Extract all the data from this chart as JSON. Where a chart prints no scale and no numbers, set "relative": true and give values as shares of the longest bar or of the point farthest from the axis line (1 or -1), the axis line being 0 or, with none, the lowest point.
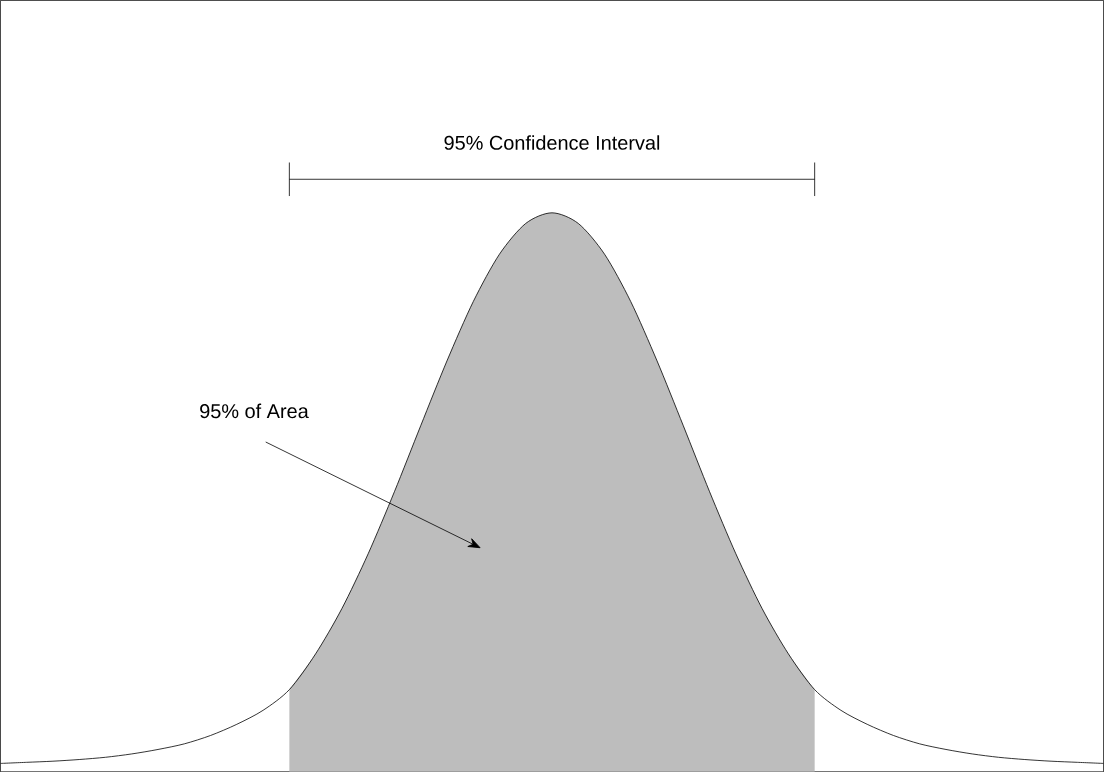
{
  "chart_data": {
    "type": "area",
    "relative": true,
    "marker": "none",
    "line_style": "solid",
    "categories": [
      null,
      null,
      null,
      null,
      null,
      null,
      null,
      null,
      null,
      null,
      null,
      null,
      null,
      null,
      null,
      null,
      null,
      null,
      null,
      null,
      null,
      null,
      null,
      null,
      null,
      null,
      null,
      null,
      null,
      null,
      null,
      null,
      null,
      null,
      null,
      null,
      null,
      null,
      null,
      null,
      null,
      null,
      null
    ],
    "series": [
      {
        "color": "#bdbdbd",
        "values": [
          null,
          null,
          null,
          null,
          null,
          null,
          null,
          null,
          null,
          null,
          null,
          0.147,
          0.211,
          0.292,
          0.39,
          0.501,
          0.619,
          0.735,
          0.841,
          0.926,
          0.981,
          1,
          0.981,
          0.926,
          0.841,
          0.735,
          0.619,
          0.501,
          0.39,
          0.292,
          0.211,
          0.147,
          null,
          null,
          null,
          null,
          null,
          null,
          null,
          null,
          null,
          null,
          null
        ]
      },
      {
        "type": "line",
        "color": "#000000",
        "values": [
          0.015,
          0.017,
          0.019,
          0.022,
          0.026,
          0.032,
          0.04,
          0.05,
          0.065,
          0.085,
          0.11,
          0.147,
          0.211,
          0.292,
          0.39,
          0.501,
          0.619,
          0.735,
          0.841,
          0.926,
          0.981,
          1,
          0.981,
          0.926,
          0.841,
          0.735,
          0.619,
          0.501,
          0.39,
          0.292,
          0.211,
          0.147,
          0.11,
          0.085,
          0.065,
          0.05,
          0.04,
          0.032,
          0.026,
          0.022,
          0.019,
          0.017,
          0.015
        ]
      }
    ],
    "annotations": [
      "95% Confidence Interval",
      "95% of Area"
    ]
  }
}
